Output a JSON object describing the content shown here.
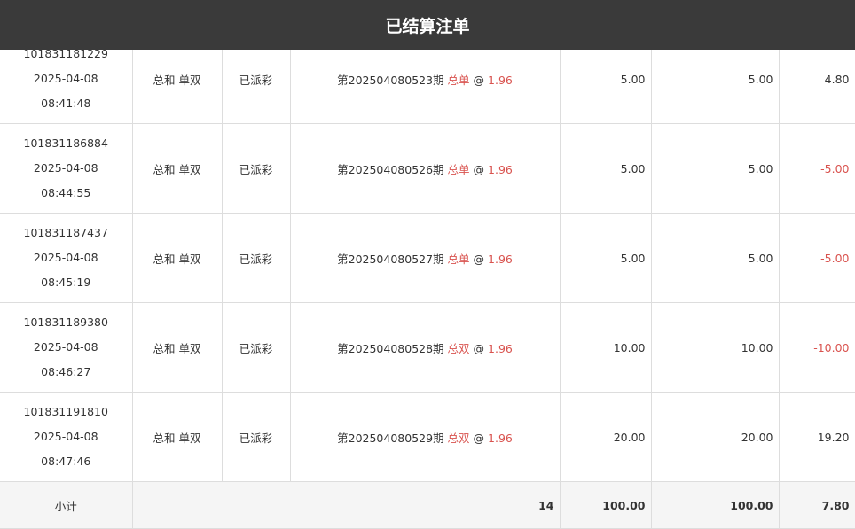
{
  "header": {
    "title": "已结算注单"
  },
  "rows": [
    {
      "id": "101831181229",
      "date": "2025-04-08",
      "time": "08:41:48",
      "type": "总和 单双",
      "status": "已派彩",
      "period": "第202504080523期",
      "pick": "总单",
      "at": "@",
      "odds": "1.96",
      "amount": "5.00",
      "valid": "5.00",
      "result": "4.80",
      "negative": false
    },
    {
      "id": "101831186884",
      "date": "2025-04-08",
      "time": "08:44:55",
      "type": "总和 单双",
      "status": "已派彩",
      "period": "第202504080526期",
      "pick": "总单",
      "at": "@",
      "odds": "1.96",
      "amount": "5.00",
      "valid": "5.00",
      "result": "-5.00",
      "negative": true
    },
    {
      "id": "101831187437",
      "date": "2025-04-08",
      "time": "08:45:19",
      "type": "总和 单双",
      "status": "已派彩",
      "period": "第202504080527期",
      "pick": "总单",
      "at": "@",
      "odds": "1.96",
      "amount": "5.00",
      "valid": "5.00",
      "result": "-5.00",
      "negative": true
    },
    {
      "id": "101831189380",
      "date": "2025-04-08",
      "time": "08:46:27",
      "type": "总和 单双",
      "status": "已派彩",
      "period": "第202504080528期",
      "pick": "总双",
      "at": "@",
      "odds": "1.96",
      "amount": "10.00",
      "valid": "10.00",
      "result": "-10.00",
      "negative": true
    },
    {
      "id": "101831191810",
      "date": "2025-04-08",
      "time": "08:47:46",
      "type": "总和 单双",
      "status": "已派彩",
      "period": "第202504080529期",
      "pick": "总双",
      "at": "@",
      "odds": "1.96",
      "amount": "20.00",
      "valid": "20.00",
      "result": "19.20",
      "negative": false
    }
  ],
  "subtotal": {
    "label": "小计",
    "count": "14",
    "amount": "100.00",
    "valid": "100.00",
    "result": "7.80"
  },
  "colors": {
    "header_bg": "#3a3a3a",
    "accent_red": "#d9534f",
    "footer_bg": "#f5f5f5"
  }
}
